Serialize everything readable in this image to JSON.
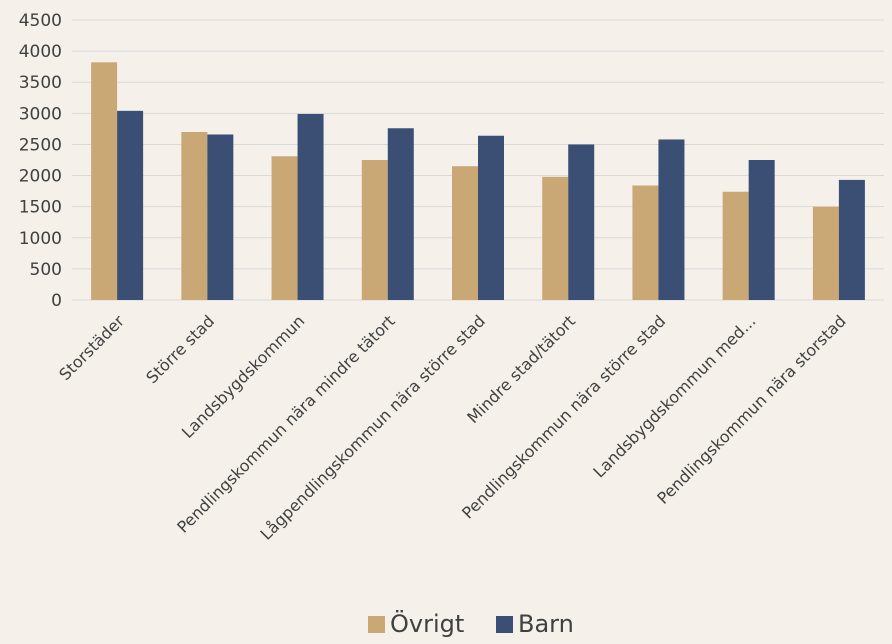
{
  "chart_data": {
    "type": "bar",
    "title": "",
    "xlabel": "",
    "ylabel": "",
    "ylim": [
      0,
      4500
    ],
    "yticks": [
      0,
      500,
      1000,
      1500,
      2000,
      2500,
      3000,
      3500,
      4000,
      4500
    ],
    "grid": true,
    "legend_position": "bottom",
    "categories": [
      "Storstäder",
      "Större stad",
      "Landsbygdskommun",
      "Pendlingskommun nära mindre tätort",
      "Lågpendlingskommun nära större stad",
      "Mindre stad/tätort",
      "Pendlingskommun nära större stad",
      "Landsbygdskommun med...",
      "Pendlingskommun nära storstad"
    ],
    "series": [
      {
        "name": "Övrigt",
        "color": "#c9a875",
        "values": [
          3820,
          2700,
          2310,
          2250,
          2150,
          1980,
          1840,
          1740,
          1500
        ]
      },
      {
        "name": "Barn",
        "color": "#3a4f73",
        "values": [
          3040,
          2660,
          2990,
          2760,
          2640,
          2500,
          2580,
          2250,
          1930
        ]
      }
    ]
  }
}
